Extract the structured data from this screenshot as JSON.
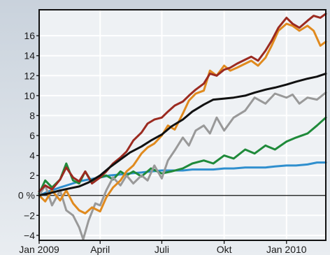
{
  "chart_data": {
    "type": "line",
    "title": "",
    "xlabel": "",
    "ylabel": "",
    "y_unit": "%",
    "ylim": [
      -4.5,
      18.6
    ],
    "y_ticks": [
      -4,
      -2,
      0,
      2,
      4,
      6,
      8,
      10,
      12,
      14,
      16
    ],
    "y_tick_labels": [
      "−4",
      "−2",
      "0 %",
      "2",
      "4",
      "6",
      "8",
      "10",
      "12",
      "14",
      "16"
    ],
    "x_range": [
      "2009-01-01",
      "2010-02-28"
    ],
    "x_ticks": [
      {
        "date": "2009-01-01",
        "label": "Jan 2009"
      },
      {
        "date": "2009-04-01",
        "label": "April"
      },
      {
        "date": "2009-07-01",
        "label": "Juli"
      },
      {
        "date": "2009-10-01",
        "label": "Okt"
      },
      {
        "date": "2010-01-01",
        "label": "Jan 2010"
      }
    ],
    "grid": true,
    "legend": "none",
    "series": [
      {
        "color": "#2f8fce",
        "x": [
          "2009-01-01",
          "2009-01-15",
          "2009-02-01",
          "2009-02-15",
          "2009-03-01",
          "2009-03-15",
          "2009-04-01",
          "2009-04-15",
          "2009-05-01",
          "2009-05-15",
          "2009-06-01",
          "2009-06-15",
          "2009-07-01",
          "2009-07-15",
          "2009-08-01",
          "2009-08-15",
          "2009-09-01",
          "2009-09-15",
          "2009-10-01",
          "2009-10-15",
          "2009-11-01",
          "2009-11-15",
          "2009-12-01",
          "2009-12-15",
          "2010-01-01",
          "2010-01-15",
          "2010-02-01",
          "2010-02-15",
          "2010-02-28"
        ],
        "y": [
          0.0,
          0.4,
          0.8,
          1.1,
          1.4,
          1.6,
          1.8,
          2.0,
          2.1,
          2.2,
          2.3,
          2.4,
          2.5,
          2.5,
          2.5,
          2.6,
          2.6,
          2.6,
          2.7,
          2.7,
          2.8,
          2.8,
          2.8,
          2.9,
          3.0,
          3.0,
          3.1,
          3.3,
          3.3
        ]
      },
      {
        "color": "#1f8a3a",
        "x": [
          "2009-01-01",
          "2009-01-10",
          "2009-01-20",
          "2009-02-01",
          "2009-02-10",
          "2009-02-20",
          "2009-03-01",
          "2009-03-10",
          "2009-03-20",
          "2009-04-01",
          "2009-04-10",
          "2009-04-20",
          "2009-05-01",
          "2009-05-10",
          "2009-05-20",
          "2009-06-01",
          "2009-06-15",
          "2009-07-01",
          "2009-07-15",
          "2009-08-01",
          "2009-08-15",
          "2009-09-01",
          "2009-09-15",
          "2009-10-01",
          "2009-10-15",
          "2009-11-01",
          "2009-11-15",
          "2009-12-01",
          "2009-12-15",
          "2010-01-01",
          "2010-01-15",
          "2010-02-01",
          "2010-02-15",
          "2010-02-28"
        ],
        "y": [
          0.2,
          1.5,
          0.8,
          1.6,
          3.2,
          1.5,
          1.2,
          2.4,
          1.3,
          1.8,
          2.0,
          1.6,
          2.4,
          2.0,
          2.4,
          1.9,
          2.7,
          2.2,
          2.4,
          2.7,
          3.2,
          3.5,
          3.2,
          4.0,
          3.7,
          4.6,
          4.2,
          5.0,
          4.6,
          5.4,
          5.8,
          6.2,
          7.0,
          7.8
        ]
      },
      {
        "color": "#999999",
        "x": [
          "2009-01-01",
          "2009-01-10",
          "2009-01-20",
          "2009-02-01",
          "2009-02-10",
          "2009-02-20",
          "2009-03-01",
          "2009-03-07",
          "2009-03-15",
          "2009-03-25",
          "2009-04-01",
          "2009-04-10",
          "2009-04-20",
          "2009-05-01",
          "2009-05-10",
          "2009-05-20",
          "2009-06-01",
          "2009-06-10",
          "2009-06-20",
          "2009-07-01",
          "2009-07-10",
          "2009-07-20",
          "2009-08-01",
          "2009-08-10",
          "2009-08-20",
          "2009-09-01",
          "2009-09-10",
          "2009-09-20",
          "2009-10-01",
          "2009-10-15",
          "2009-11-01",
          "2009-11-15",
          "2009-12-01",
          "2009-12-15",
          "2010-01-01",
          "2010-01-10",
          "2010-01-20",
          "2010-02-01",
          "2010-02-15",
          "2010-02-28"
        ],
        "y": [
          0.0,
          1.0,
          -1.0,
          0.5,
          -1.5,
          -2.0,
          -3.2,
          -4.4,
          -2.5,
          -0.8,
          -1.0,
          0.5,
          1.8,
          1.0,
          2.0,
          1.2,
          2.0,
          1.5,
          3.0,
          1.7,
          3.5,
          4.5,
          5.8,
          5.0,
          6.5,
          7.0,
          6.2,
          7.8,
          6.5,
          7.8,
          8.5,
          9.8,
          9.2,
          10.2,
          9.8,
          10.1,
          9.2,
          9.8,
          9.6,
          10.3
        ]
      },
      {
        "color": "#e08a1e",
        "x": [
          "2009-01-01",
          "2009-01-10",
          "2009-01-20",
          "2009-02-01",
          "2009-02-10",
          "2009-02-20",
          "2009-03-01",
          "2009-03-10",
          "2009-03-20",
          "2009-04-01",
          "2009-04-10",
          "2009-04-20",
          "2009-05-01",
          "2009-05-10",
          "2009-05-20",
          "2009-06-01",
          "2009-06-10",
          "2009-06-20",
          "2009-07-01",
          "2009-07-10",
          "2009-07-20",
          "2009-08-01",
          "2009-08-10",
          "2009-08-20",
          "2009-09-01",
          "2009-09-10",
          "2009-09-20",
          "2009-10-01",
          "2009-10-10",
          "2009-10-20",
          "2009-11-01",
          "2009-11-10",
          "2009-11-20",
          "2009-12-01",
          "2009-12-10",
          "2009-12-20",
          "2010-01-01",
          "2010-01-10",
          "2010-01-20",
          "2010-02-01",
          "2010-02-10",
          "2010-02-20",
          "2010-02-28"
        ],
        "y": [
          0.0,
          -0.6,
          0.5,
          -0.5,
          0.5,
          -0.8,
          -1.5,
          -1.8,
          -1.2,
          -1.6,
          -0.2,
          0.8,
          1.5,
          2.4,
          3.0,
          4.2,
          4.8,
          5.2,
          6.0,
          7.0,
          6.6,
          8.2,
          9.5,
          10.2,
          10.5,
          12.5,
          12.0,
          13.0,
          12.5,
          12.8,
          13.2,
          13.5,
          13.0,
          13.8,
          15.0,
          16.5,
          17.2,
          17.0,
          16.5,
          17.0,
          16.5,
          15.0,
          15.4
        ]
      },
      {
        "color": "#9b2a20",
        "x": [
          "2009-01-01",
          "2009-01-10",
          "2009-01-20",
          "2009-02-01",
          "2009-02-10",
          "2009-02-20",
          "2009-03-01",
          "2009-03-10",
          "2009-03-20",
          "2009-04-01",
          "2009-04-10",
          "2009-04-20",
          "2009-05-01",
          "2009-05-10",
          "2009-05-20",
          "2009-06-01",
          "2009-06-10",
          "2009-06-20",
          "2009-07-01",
          "2009-07-10",
          "2009-07-20",
          "2009-08-01",
          "2009-08-10",
          "2009-08-20",
          "2009-09-01",
          "2009-09-10",
          "2009-09-20",
          "2009-10-01",
          "2009-10-10",
          "2009-10-20",
          "2009-11-01",
          "2009-11-10",
          "2009-11-20",
          "2009-12-01",
          "2009-12-10",
          "2009-12-20",
          "2010-01-01",
          "2010-01-10",
          "2010-01-20",
          "2010-02-01",
          "2010-02-10",
          "2010-02-20",
          "2010-02-28"
        ],
        "y": [
          0.4,
          1.0,
          0.6,
          1.6,
          2.8,
          1.8,
          1.4,
          2.4,
          1.2,
          1.8,
          2.4,
          3.2,
          3.8,
          4.4,
          5.5,
          6.3,
          7.2,
          7.6,
          7.8,
          8.4,
          9.0,
          9.4,
          10.0,
          10.6,
          11.2,
          12.2,
          12.0,
          12.6,
          12.8,
          13.2,
          13.6,
          13.9,
          13.5,
          14.5,
          15.5,
          16.8,
          17.8,
          17.2,
          16.8,
          17.5,
          18.0,
          17.8,
          18.2
        ]
      },
      {
        "color": "#111111",
        "x": [
          "2009-01-01",
          "2009-01-15",
          "2009-02-01",
          "2009-02-15",
          "2009-03-01",
          "2009-03-15",
          "2009-04-01",
          "2009-04-15",
          "2009-05-01",
          "2009-05-15",
          "2009-06-01",
          "2009-06-15",
          "2009-07-01",
          "2009-07-15",
          "2009-08-01",
          "2009-08-15",
          "2009-09-01",
          "2009-09-15",
          "2009-10-01",
          "2009-10-15",
          "2009-11-01",
          "2009-11-15",
          "2009-12-01",
          "2009-12-15",
          "2010-01-01",
          "2010-01-15",
          "2010-02-01",
          "2010-02-15",
          "2010-02-28"
        ],
        "y": [
          0.0,
          0.2,
          0.5,
          0.7,
          0.9,
          1.3,
          2.0,
          2.8,
          3.6,
          4.3,
          4.9,
          5.5,
          6.1,
          6.9,
          7.6,
          8.4,
          9.1,
          9.6,
          9.7,
          9.8,
          10.0,
          10.3,
          10.6,
          10.8,
          11.1,
          11.4,
          11.7,
          11.9,
          12.2
        ]
      }
    ]
  }
}
